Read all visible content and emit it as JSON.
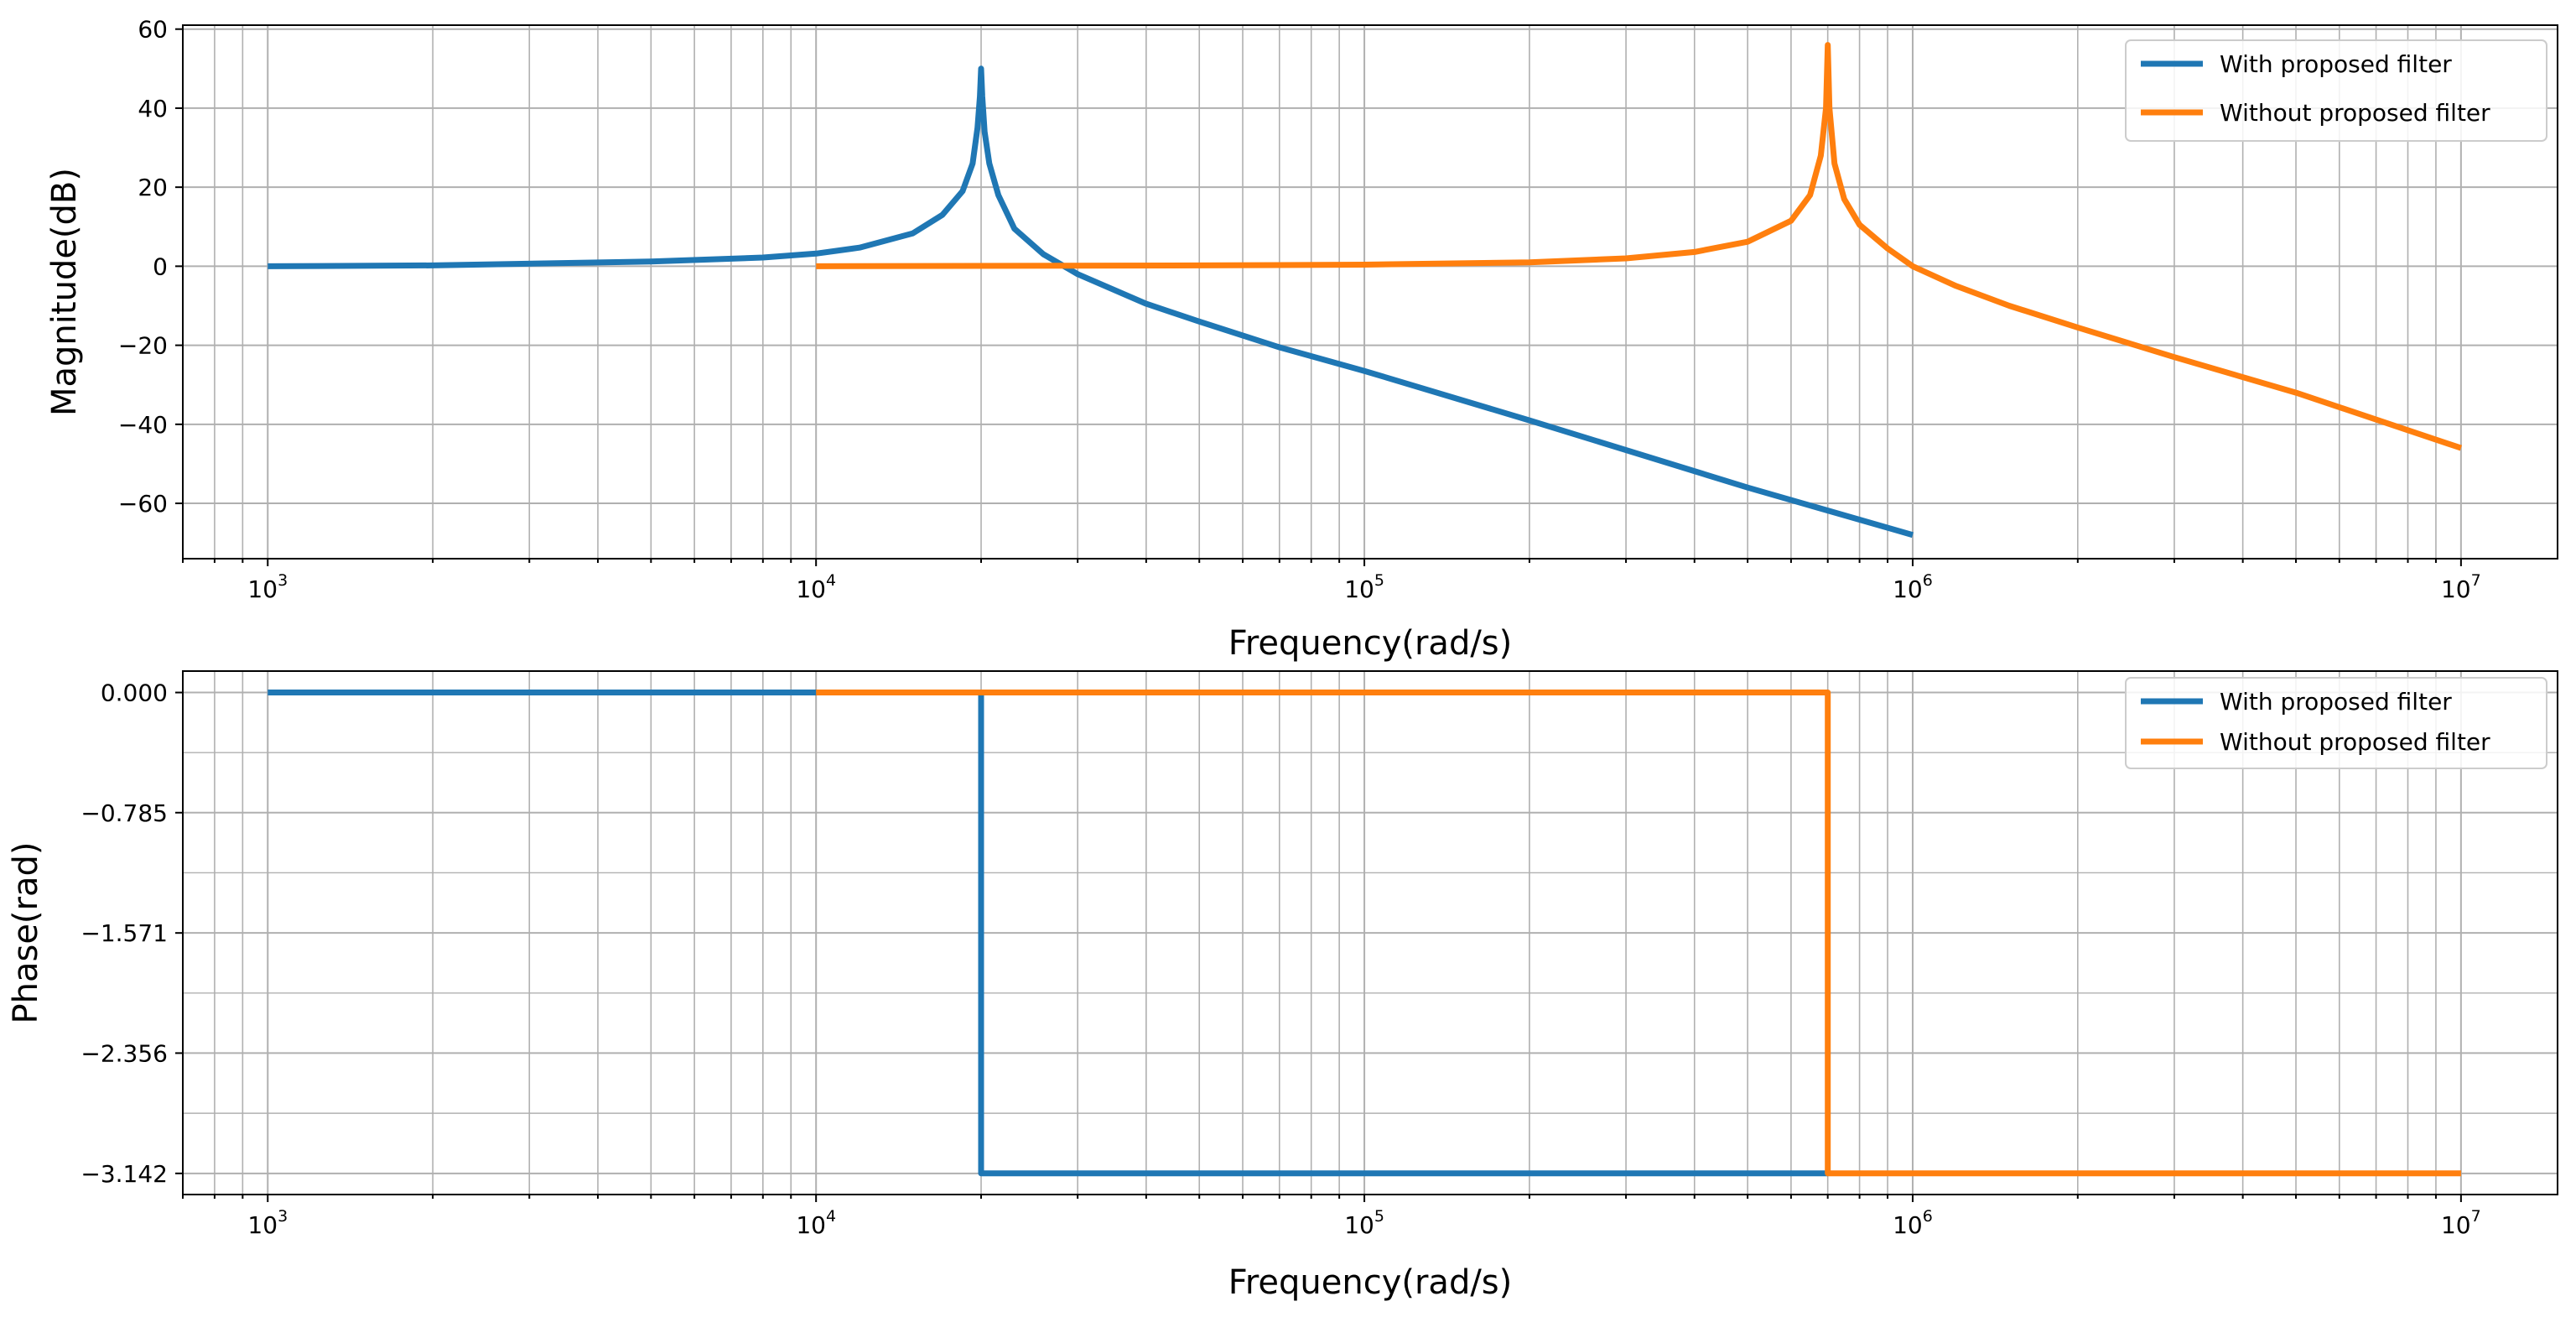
{
  "colors": {
    "series_0": "#1f77b4",
    "series_1": "#ff7f0e",
    "grid": "#b0b0b0",
    "axes": "#000000",
    "legend_border": "#cccccc"
  },
  "chart_data": [
    {
      "type": "line",
      "title": "",
      "xlabel": "Frequency(rad/s)",
      "ylabel": "Magnitude(dB)",
      "x_scale": "log",
      "xlim": [
        700,
        15000000
      ],
      "ylim": [
        -74,
        61
      ],
      "grid": "on (major and minor, log x)",
      "legend_position": "top-right",
      "xticks": [
        {
          "value": 1000,
          "base": "10",
          "exp": "3"
        },
        {
          "value": 10000,
          "base": "10",
          "exp": "4"
        },
        {
          "value": 100000,
          "base": "10",
          "exp": "5"
        },
        {
          "value": 1000000,
          "base": "10",
          "exp": "6"
        },
        {
          "value": 10000000,
          "base": "10",
          "exp": "7"
        }
      ],
      "yticks": [
        {
          "value": 60,
          "label": "60"
        },
        {
          "value": 40,
          "label": "40"
        },
        {
          "value": 20,
          "label": "20"
        },
        {
          "value": 0,
          "label": "0"
        },
        {
          "value": -20,
          "label": "−20"
        },
        {
          "value": -40,
          "label": "−40"
        },
        {
          "value": -60,
          "label": "−60"
        }
      ],
      "series": [
        {
          "name": "With proposed filter",
          "color": "#1f77b4",
          "x": [
            1000,
            2000,
            5000,
            8000,
            10000,
            12000,
            15000,
            17000,
            18500,
            19300,
            19700,
            19900,
            20000,
            20100,
            20300,
            20700,
            21500,
            23000,
            26000,
            30000,
            40000,
            50000,
            70000,
            100000,
            200000,
            500000,
            1000000
          ],
          "y": [
            0,
            0.2,
            1.2,
            2.2,
            3.2,
            4.7,
            8.3,
            13,
            19,
            26,
            35,
            43,
            50,
            43,
            34,
            26,
            18,
            9.5,
            3,
            -2,
            -9.5,
            -14,
            -20.5,
            -26.5,
            -39,
            -56,
            -68
          ]
        },
        {
          "name": "Without proposed filter",
          "color": "#ff7f0e",
          "x": [
            10000,
            50000,
            100000,
            200000,
            300000,
            400000,
            500000,
            600000,
            650000,
            680000,
            695000,
            700000,
            705000,
            720000,
            750000,
            800000,
            900000,
            1000000,
            1200000,
            1500000,
            2000000,
            3000000,
            5000000,
            10000000
          ],
          "y": [
            0,
            0.2,
            0.4,
            1,
            2,
            3.6,
            6.2,
            11.5,
            18,
            28,
            40,
            56,
            40,
            26,
            17,
            10.5,
            4.5,
            0,
            -5,
            -10,
            -15.5,
            -23,
            -32,
            -46
          ]
        }
      ]
    },
    {
      "type": "line",
      "title": "",
      "xlabel": "Frequency(rad/s)",
      "ylabel": "Phase(rad)",
      "x_scale": "log",
      "xlim": [
        700,
        15000000
      ],
      "ylim": [
        -3.28,
        0.14
      ],
      "grid": "on (major and minor, log x)",
      "legend_position": "top-right",
      "xticks": [
        {
          "value": 1000,
          "base": "10",
          "exp": "3"
        },
        {
          "value": 10000,
          "base": "10",
          "exp": "4"
        },
        {
          "value": 100000,
          "base": "10",
          "exp": "5"
        },
        {
          "value": 1000000,
          "base": "10",
          "exp": "6"
        },
        {
          "value": 10000000,
          "base": "10",
          "exp": "7"
        }
      ],
      "yticks": [
        {
          "value": 0,
          "label": "0.000"
        },
        {
          "value": -0.785,
          "label": "−0.785"
        },
        {
          "value": -1.571,
          "label": "−1.571"
        },
        {
          "value": -2.356,
          "label": "−2.356"
        },
        {
          "value": -3.142,
          "label": "−3.142"
        }
      ],
      "yminor": [
        -0.3927,
        -1.178,
        -1.9635,
        -2.749
      ],
      "series": [
        {
          "name": "With proposed filter",
          "color": "#1f77b4",
          "x": [
            1000,
            20000,
            20000,
            700000
          ],
          "y": [
            0,
            0,
            -3.142,
            -3.142
          ]
        },
        {
          "name": "Without proposed filter",
          "color": "#ff7f0e",
          "x": [
            10000,
            700000,
            700000,
            10000000
          ],
          "y": [
            0,
            0,
            -3.142,
            -3.142
          ]
        }
      ]
    }
  ]
}
